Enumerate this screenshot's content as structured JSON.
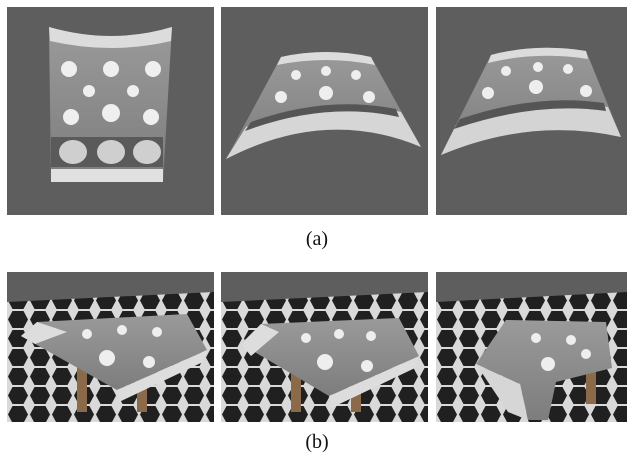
{
  "figure": {
    "captions": {
      "a": "(a)",
      "b": "(b)"
    },
    "colors": {
      "background": "#5e5e5e",
      "cloth": "#8f8f8f",
      "lace": "#e8e8e8"
    }
  }
}
